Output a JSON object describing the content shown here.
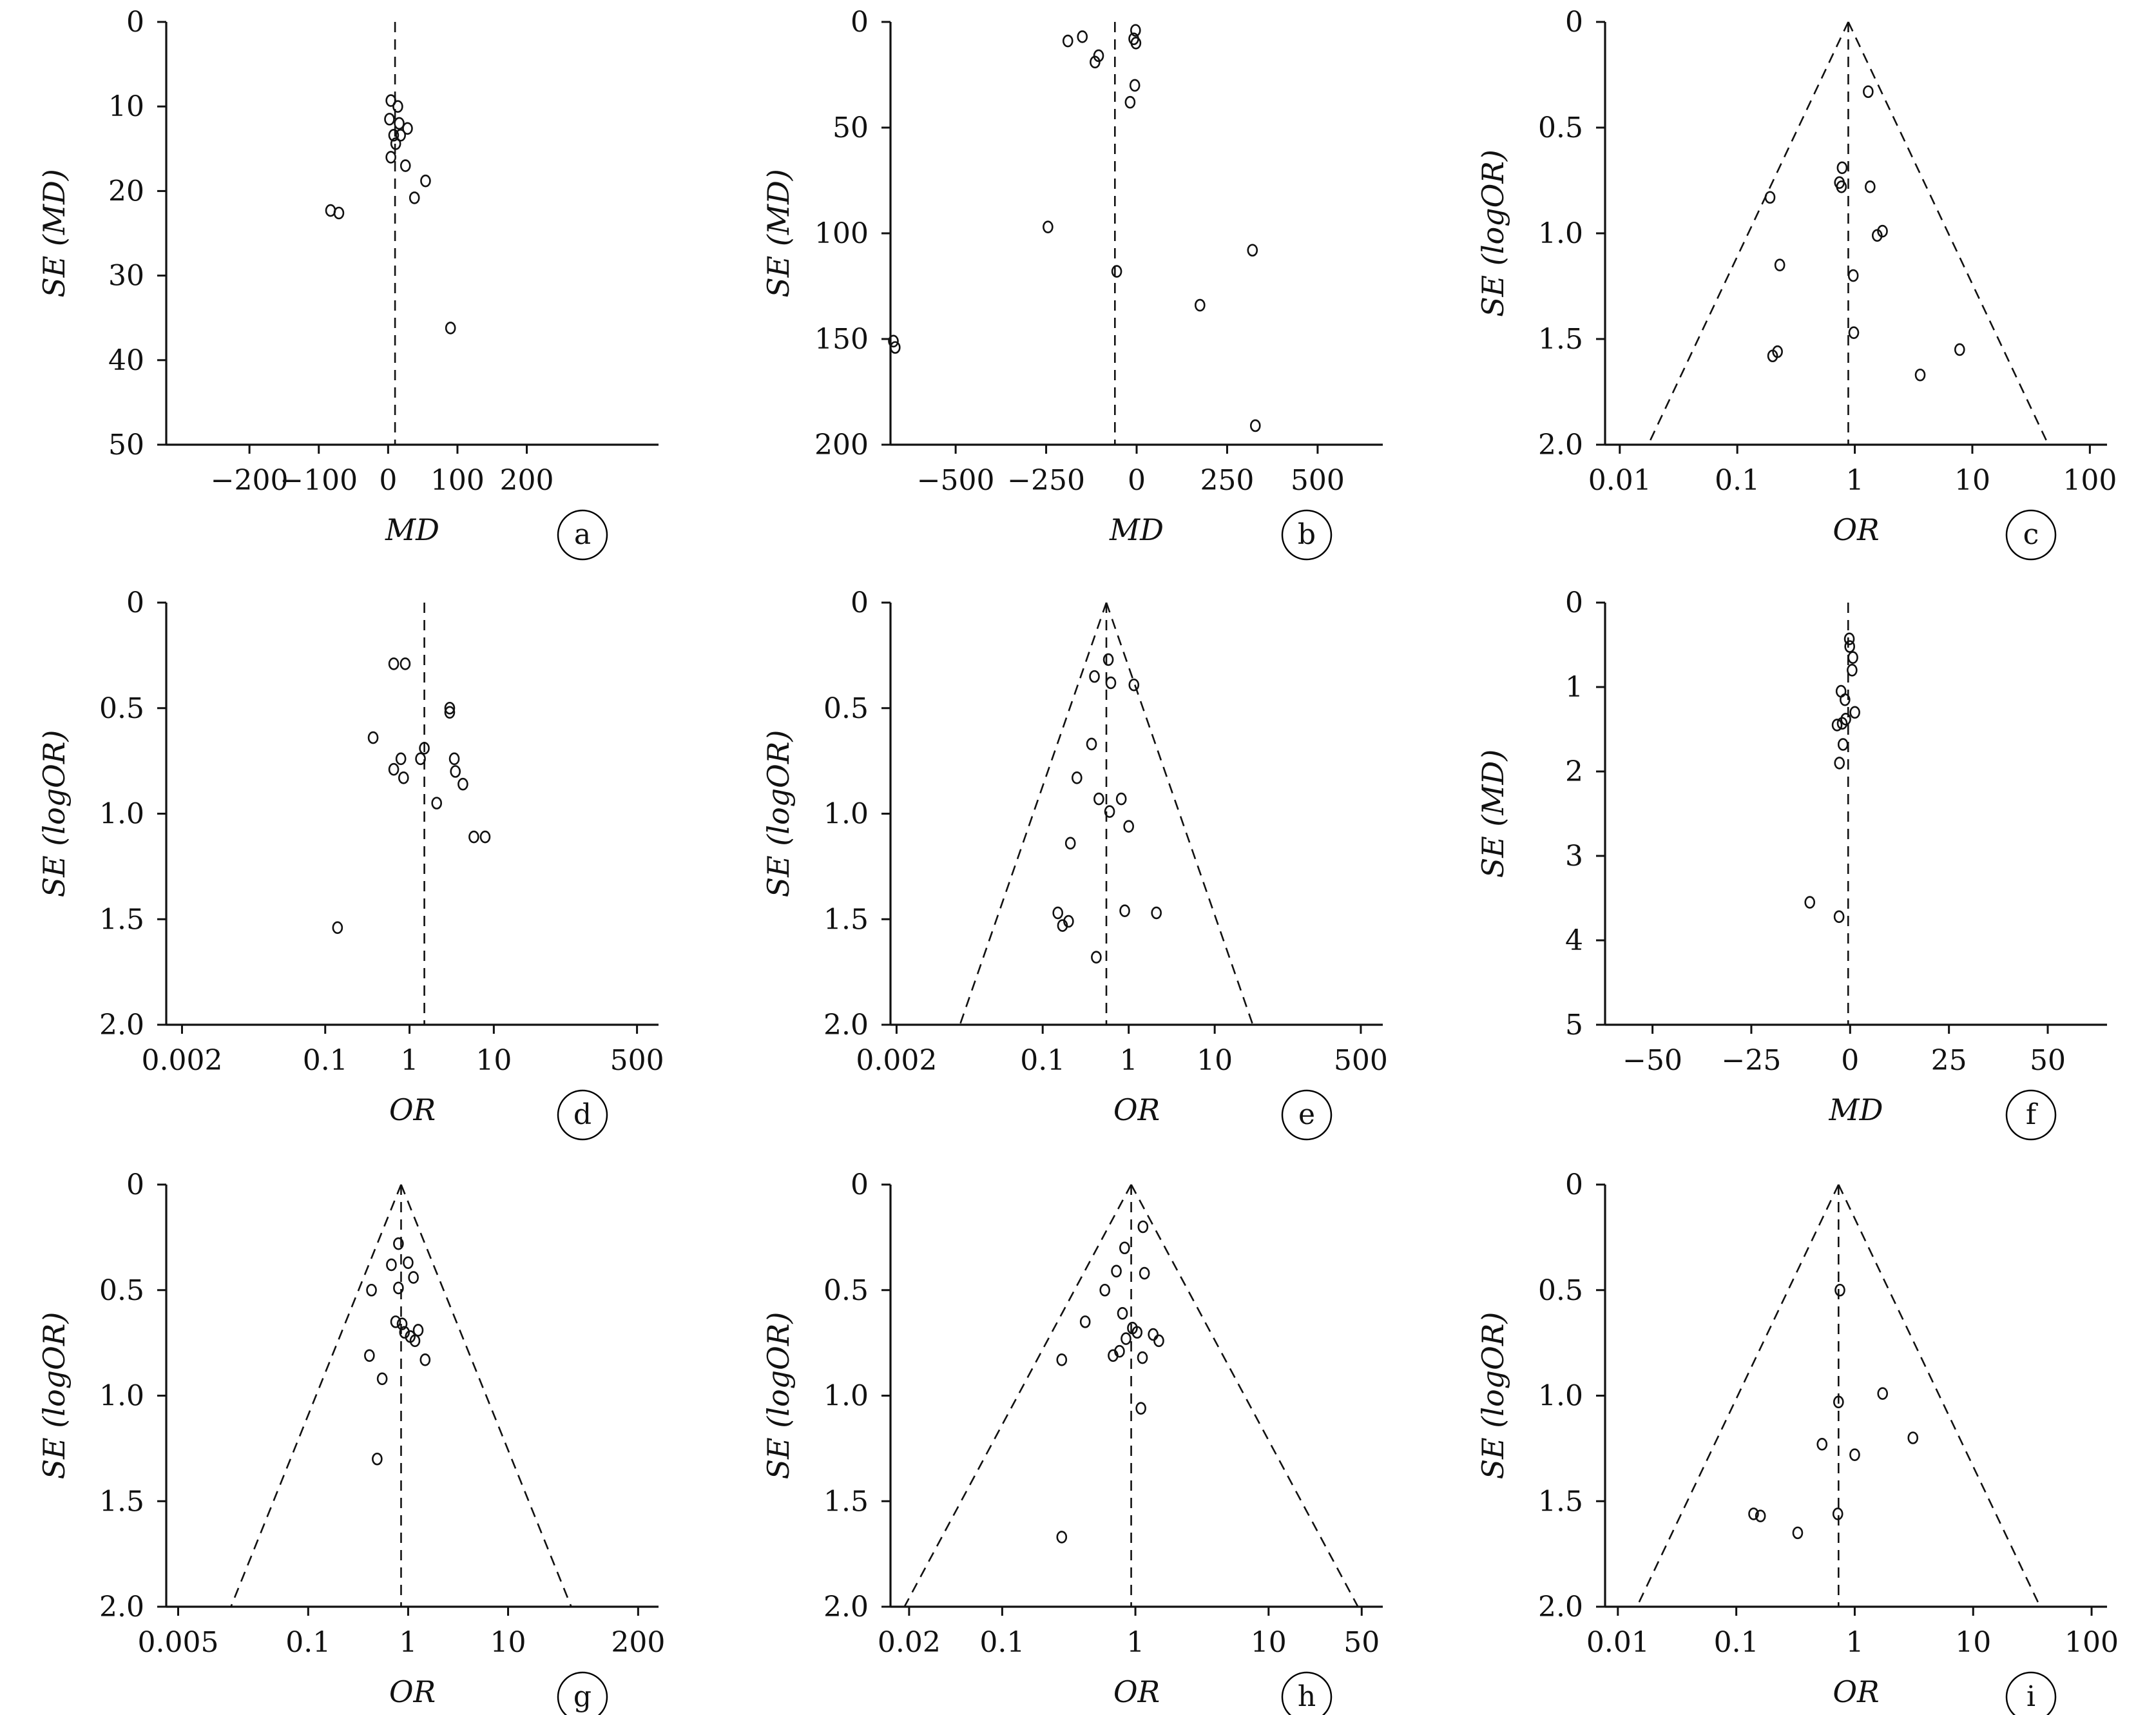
{
  "figure": {
    "colors": {
      "ink": "#111111",
      "background": "#ffffff"
    }
  },
  "chart_data": [
    {
      "panel": "a",
      "type": "scatter",
      "subtype": "funnel",
      "xlabel": "MD",
      "ylabel": "SE (MD)",
      "x_scale": "linear",
      "x_range": [
        -320,
        390
      ],
      "x_ticks": [
        -200,
        -100,
        0,
        100,
        200
      ],
      "x_tick_labels": [
        "−200",
        "−100",
        "0",
        "100",
        "200"
      ],
      "y_range": [
        0,
        50
      ],
      "y_inverted": true,
      "y_ticks": [
        0,
        10,
        20,
        30,
        40,
        50
      ],
      "y_tick_labels": [
        "0",
        "10",
        "20",
        "30",
        "40",
        "50"
      ],
      "reference_x": 10,
      "funnel_limits": false,
      "points": [
        [
          4,
          9.3
        ],
        [
          14,
          10
        ],
        [
          2,
          11.5
        ],
        [
          16,
          12
        ],
        [
          28,
          12.6
        ],
        [
          8,
          13.4
        ],
        [
          18,
          13.4
        ],
        [
          11,
          14.4
        ],
        [
          4,
          16
        ],
        [
          25,
          17
        ],
        [
          54,
          18.8
        ],
        [
          38,
          20.8
        ],
        [
          -83,
          22.3
        ],
        [
          -71,
          22.6
        ],
        [
          90,
          36.2
        ]
      ]
    },
    {
      "panel": "b",
      "type": "scatter",
      "subtype": "funnel",
      "xlabel": "MD",
      "ylabel": "SE (MD)",
      "x_scale": "linear",
      "x_range": [
        -680,
        680
      ],
      "x_ticks": [
        -500,
        -250,
        0,
        250,
        500
      ],
      "x_tick_labels": [
        "−500",
        "−250",
        "0",
        "250",
        "500"
      ],
      "y_range": [
        0,
        200
      ],
      "y_inverted": true,
      "y_ticks": [
        0,
        50,
        100,
        150,
        200
      ],
      "y_tick_labels": [
        "0",
        "50",
        "100",
        "150",
        "200"
      ],
      "reference_x": -60,
      "funnel_limits": false,
      "points": [
        [
          -3,
          4
        ],
        [
          -150,
          7
        ],
        [
          -190,
          9
        ],
        [
          -8,
          8
        ],
        [
          -2,
          10
        ],
        [
          -105,
          16
        ],
        [
          -115,
          19
        ],
        [
          -5,
          30
        ],
        [
          -18,
          38
        ],
        [
          -245,
          97
        ],
        [
          320,
          108
        ],
        [
          -55,
          118
        ],
        [
          175,
          134
        ],
        [
          -672,
          151
        ],
        [
          -667,
          154
        ],
        [
          328,
          191
        ]
      ]
    },
    {
      "panel": "c",
      "type": "scatter",
      "subtype": "funnel",
      "xlabel": "OR",
      "ylabel": "SE (logOR)",
      "x_scale": "log",
      "x_range": [
        0.0075,
        140
      ],
      "x_ticks": [
        0.01,
        0.1,
        1,
        10,
        100
      ],
      "x_tick_labels": [
        "0.01",
        "0.1",
        "1",
        "10",
        "100"
      ],
      "y_range": [
        0,
        2
      ],
      "y_inverted": true,
      "y_ticks": [
        0,
        0.5,
        1,
        1.5,
        2
      ],
      "y_tick_labels": [
        "0",
        "0.5",
        "1.0",
        "1.5",
        "2.0"
      ],
      "reference_x": 0.88,
      "funnel_limits": true,
      "points": [
        [
          1.3,
          0.33
        ],
        [
          0.78,
          0.69
        ],
        [
          0.74,
          0.76
        ],
        [
          0.77,
          0.78
        ],
        [
          1.35,
          0.78
        ],
        [
          0.19,
          0.83
        ],
        [
          1.72,
          0.99
        ],
        [
          1.55,
          1.01
        ],
        [
          0.23,
          1.15
        ],
        [
          0.97,
          1.2
        ],
        [
          0.98,
          1.47
        ],
        [
          7.8,
          1.55
        ],
        [
          0.22,
          1.56
        ],
        [
          0.2,
          1.58
        ],
        [
          3.6,
          1.67
        ]
      ]
    },
    {
      "panel": "d",
      "type": "scatter",
      "subtype": "funnel",
      "xlabel": "OR",
      "ylabel": "SE (logOR)",
      "x_scale": "log",
      "x_range": [
        0.0013,
        900
      ],
      "x_ticks": [
        0.002,
        0.1,
        1,
        10,
        500
      ],
      "x_tick_labels": [
        "0.002",
        "0.1",
        "1",
        "10",
        "500"
      ],
      "y_range": [
        0,
        2
      ],
      "y_inverted": true,
      "y_ticks": [
        0,
        0.5,
        1,
        1.5,
        2
      ],
      "y_tick_labels": [
        "0",
        "0.5",
        "1.0",
        "1.5",
        "2.0"
      ],
      "reference_x": 1.5,
      "funnel_limits": false,
      "points": [
        [
          0.65,
          0.29
        ],
        [
          0.89,
          0.29
        ],
        [
          3.0,
          0.5
        ],
        [
          3.0,
          0.52
        ],
        [
          0.37,
          0.64
        ],
        [
          1.5,
          0.69
        ],
        [
          0.79,
          0.74
        ],
        [
          1.35,
          0.74
        ],
        [
          3.4,
          0.74
        ],
        [
          0.65,
          0.79
        ],
        [
          3.5,
          0.8
        ],
        [
          0.85,
          0.83
        ],
        [
          4.3,
          0.86
        ],
        [
          2.1,
          0.95
        ],
        [
          5.8,
          1.11
        ],
        [
          7.9,
          1.11
        ],
        [
          0.14,
          1.54
        ]
      ]
    },
    {
      "panel": "e",
      "type": "scatter",
      "subtype": "funnel",
      "xlabel": "OR",
      "ylabel": "SE (logOR)",
      "x_scale": "log",
      "x_range": [
        0.0017,
        900
      ],
      "x_ticks": [
        0.002,
        0.1,
        1,
        10,
        500
      ],
      "x_tick_labels": [
        "0.002",
        "0.1",
        "1",
        "10",
        "500"
      ],
      "y_range": [
        0,
        2
      ],
      "y_inverted": true,
      "y_ticks": [
        0,
        0.5,
        1,
        1.5,
        2
      ],
      "y_tick_labels": [
        "0",
        "0.5",
        "1.0",
        "1.5",
        "2.0"
      ],
      "reference_x": 0.55,
      "funnel_limits": true,
      "points": [
        [
          0.58,
          0.27
        ],
        [
          0.4,
          0.35
        ],
        [
          0.62,
          0.38
        ],
        [
          1.15,
          0.39
        ],
        [
          0.37,
          0.67
        ],
        [
          0.25,
          0.83
        ],
        [
          0.82,
          0.93
        ],
        [
          0.45,
          0.93
        ],
        [
          0.6,
          0.99
        ],
        [
          1.0,
          1.06
        ],
        [
          0.21,
          1.14
        ],
        [
          0.15,
          1.47
        ],
        [
          2.1,
          1.47
        ],
        [
          0.9,
          1.46
        ],
        [
          0.2,
          1.51
        ],
        [
          0.17,
          1.53
        ],
        [
          0.42,
          1.68
        ]
      ]
    },
    {
      "panel": "f",
      "type": "scatter",
      "subtype": "funnel",
      "xlabel": "MD",
      "ylabel": "SE (MD)",
      "x_scale": "linear",
      "x_range": [
        -62,
        65
      ],
      "x_ticks": [
        -50,
        -25,
        0,
        25,
        50
      ],
      "x_tick_labels": [
        "−50",
        "−25",
        "0",
        "25",
        "50"
      ],
      "y_range": [
        0,
        5
      ],
      "y_inverted": true,
      "y_ticks": [
        0,
        1,
        2,
        3,
        4,
        5
      ],
      "y_tick_labels": [
        "0",
        "1",
        "2",
        "3",
        "4",
        "5"
      ],
      "reference_x": -0.5,
      "funnel_limits": false,
      "points": [
        [
          -0.2,
          0.43
        ],
        [
          -0.1,
          0.52
        ],
        [
          0.7,
          0.65
        ],
        [
          0.5,
          0.8
        ],
        [
          -2.3,
          1.05
        ],
        [
          -1.3,
          1.15
        ],
        [
          1.2,
          1.3
        ],
        [
          -1.1,
          1.38
        ],
        [
          -2.0,
          1.43
        ],
        [
          -3.3,
          1.45
        ],
        [
          -1.8,
          1.68
        ],
        [
          -2.7,
          1.9
        ],
        [
          -10.2,
          3.55
        ],
        [
          -2.8,
          3.72
        ]
      ]
    },
    {
      "panel": "g",
      "type": "scatter",
      "subtype": "funnel",
      "xlabel": "OR",
      "ylabel": "SE (logOR)",
      "x_scale": "log",
      "x_range": [
        0.0038,
        320
      ],
      "x_ticks": [
        0.005,
        0.1,
        1,
        10,
        200
      ],
      "x_tick_labels": [
        "0.005",
        "0.1",
        "1",
        "10",
        "200"
      ],
      "y_range": [
        0,
        2
      ],
      "y_inverted": true,
      "y_ticks": [
        0,
        0.5,
        1,
        1.5,
        2
      ],
      "y_tick_labels": [
        "0",
        "0.5",
        "1.0",
        "1.5",
        "2.0"
      ],
      "reference_x": 0.85,
      "funnel_limits": true,
      "points": [
        [
          0.8,
          0.28
        ],
        [
          0.68,
          0.38
        ],
        [
          1.0,
          0.37
        ],
        [
          1.13,
          0.44
        ],
        [
          0.8,
          0.49
        ],
        [
          0.43,
          0.5
        ],
        [
          0.75,
          0.65
        ],
        [
          0.87,
          0.66
        ],
        [
          0.92,
          0.7
        ],
        [
          1.05,
          0.72
        ],
        [
          1.26,
          0.69
        ],
        [
          1.17,
          0.74
        ],
        [
          1.48,
          0.83
        ],
        [
          0.41,
          0.81
        ],
        [
          0.55,
          0.92
        ],
        [
          0.49,
          1.3
        ]
      ]
    },
    {
      "panel": "h",
      "type": "scatter",
      "subtype": "funnel",
      "xlabel": "OR",
      "ylabel": "SE (logOR)",
      "x_scale": "log",
      "x_range": [
        0.0145,
        72
      ],
      "x_ticks": [
        0.02,
        0.1,
        1,
        10,
        50
      ],
      "x_tick_labels": [
        "0.02",
        "0.1",
        "1",
        "10",
        "50"
      ],
      "y_range": [
        0,
        2
      ],
      "y_inverted": true,
      "y_ticks": [
        0,
        0.5,
        1,
        1.5,
        2
      ],
      "y_tick_labels": [
        "0",
        "0.5",
        "1.0",
        "1.5",
        "2.0"
      ],
      "reference_x": 0.93,
      "funnel_limits": true,
      "points": [
        [
          1.14,
          0.2
        ],
        [
          0.83,
          0.3
        ],
        [
          0.72,
          0.41
        ],
        [
          1.17,
          0.42
        ],
        [
          0.59,
          0.5
        ],
        [
          0.8,
          0.61
        ],
        [
          0.95,
          0.68
        ],
        [
          0.42,
          0.65
        ],
        [
          1.03,
          0.7
        ],
        [
          1.36,
          0.71
        ],
        [
          0.85,
          0.73
        ],
        [
          1.5,
          0.74
        ],
        [
          0.76,
          0.79
        ],
        [
          0.68,
          0.81
        ],
        [
          1.13,
          0.82
        ],
        [
          0.28,
          0.83
        ],
        [
          1.1,
          1.06
        ],
        [
          0.28,
          1.67
        ]
      ]
    },
    {
      "panel": "i",
      "type": "scatter",
      "subtype": "funnel",
      "xlabel": "OR",
      "ylabel": "SE (logOR)",
      "x_scale": "log",
      "x_range": [
        0.0078,
        135
      ],
      "x_ticks": [
        0.01,
        0.1,
        1,
        10,
        100
      ],
      "x_tick_labels": [
        "0.01",
        "0.1",
        "1",
        "10",
        "100"
      ],
      "y_range": [
        0,
        2
      ],
      "y_inverted": true,
      "y_ticks": [
        0,
        0.5,
        1,
        1.5,
        2
      ],
      "y_tick_labels": [
        "0",
        "0.5",
        "1.0",
        "1.5",
        "2.0"
      ],
      "reference_x": 0.73,
      "funnel_limits": true,
      "points": [
        [
          0.75,
          0.5
        ],
        [
          1.72,
          0.99
        ],
        [
          0.73,
          1.03
        ],
        [
          3.1,
          1.2
        ],
        [
          0.53,
          1.23
        ],
        [
          1.0,
          1.28
        ],
        [
          0.14,
          1.56
        ],
        [
          0.16,
          1.57
        ],
        [
          0.72,
          1.56
        ],
        [
          0.33,
          1.65
        ]
      ]
    }
  ]
}
